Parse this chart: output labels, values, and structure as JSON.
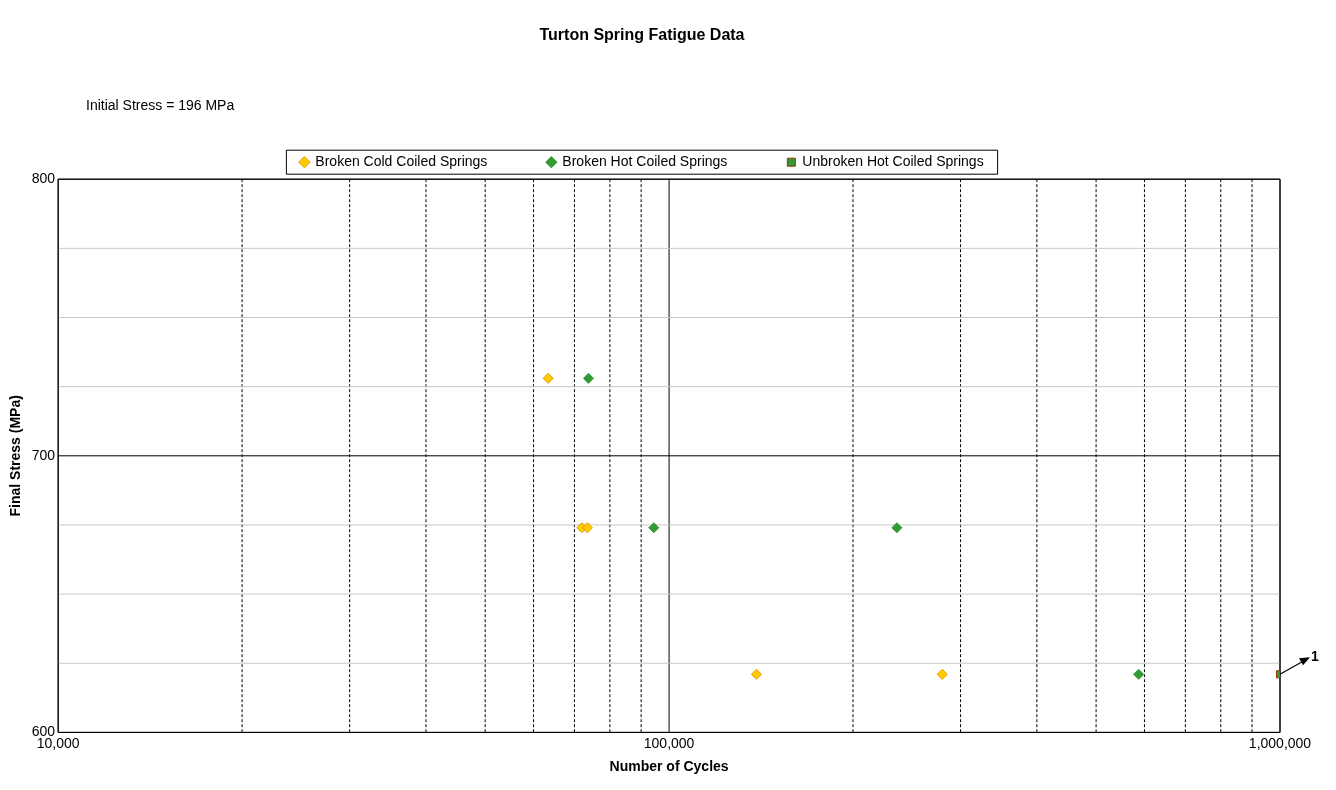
{
  "chart_data": {
    "type": "scatter",
    "title": "Turton Spring Fatigue Data",
    "xlabel": "Number of Cycles",
    "ylabel": "Final Stress (MPa)",
    "log": "x",
    "grid": true,
    "legend": "top",
    "xlim": [
      10000,
      1000000
    ],
    "xticks": [
      {
        "value": 10000,
        "label": "10,000"
      },
      {
        "value": 20000,
        "label": null
      },
      {
        "value": 30000,
        "label": null
      },
      {
        "value": 40000,
        "label": null
      },
      {
        "value": 50000,
        "label": null
      },
      {
        "value": 60000,
        "label": null
      },
      {
        "value": 70000,
        "label": null
      },
      {
        "value": 80000,
        "label": null
      },
      {
        "value": 90000,
        "label": null
      },
      {
        "value": 100000,
        "label": "100,000"
      },
      {
        "value": 200000,
        "label": null
      },
      {
        "value": 300000,
        "label": null
      },
      {
        "value": 400000,
        "label": null
      },
      {
        "value": 500000,
        "label": null
      },
      {
        "value": 600000,
        "label": null
      },
      {
        "value": 700000,
        "label": null
      },
      {
        "value": 800000,
        "label": null
      },
      {
        "value": 900000,
        "label": null
      },
      {
        "value": 1000000,
        "label": "1,000,000"
      }
    ],
    "ylim": [
      600,
      800
    ],
    "yticks": [
      600,
      {
        "value": 625,
        "label": null
      },
      {
        "value": 650,
        "label": null
      },
      {
        "value": 675,
        "label": null
      },
      700,
      {
        "value": 725,
        "label": null
      },
      {
        "value": 750,
        "label": null
      },
      {
        "value": 775,
        "label": null
      },
      800
    ],
    "series": [
      {
        "name": "Broken Cold Coiled Springs",
        "color": "#ffcc00",
        "marker": "diamond",
        "x": [
          63400,
          72000,
          73500,
          139000,
          280000
        ],
        "values": [
          728,
          674,
          674,
          621,
          621
        ]
      },
      {
        "name": "Broken Hot Coiled Springs",
        "color": "#339933",
        "marker": "diamond",
        "x": [
          73800,
          94400,
          236000,
          587000
        ],
        "values": [
          728,
          674,
          674,
          621
        ]
      },
      {
        "name": "Unbroken Hot Coiled Springs",
        "color": "#339933",
        "marker": "square",
        "x": [
          1000000
        ],
        "values": [
          621
        ]
      }
    ],
    "annotations": [
      "Initial Stress = 196 MPa",
      {
        "text": "1",
        "x": 1000000,
        "y": 621
      }
    ]
  }
}
